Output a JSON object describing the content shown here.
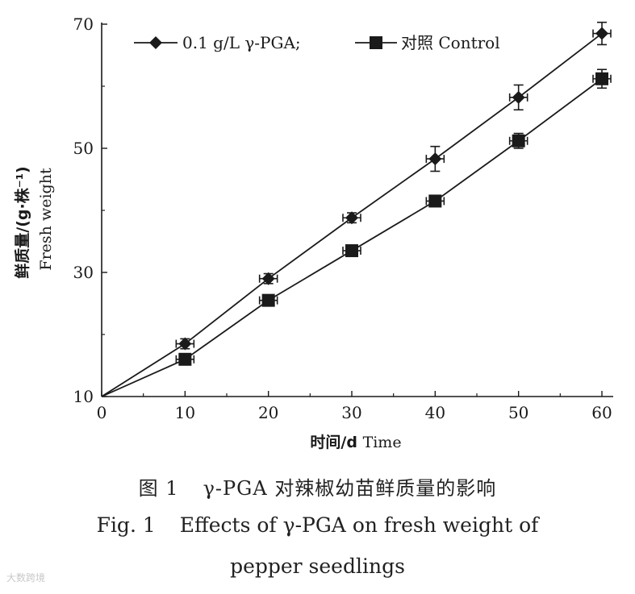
{
  "chart_data": {
    "type": "line",
    "x": [
      0,
      10,
      20,
      30,
      40,
      50,
      60
    ],
    "series": [
      {
        "name": "0.1 g/L γ-PGA;",
        "marker": "diamond",
        "values": [
          10,
          18.5,
          29,
          38.8,
          48.3,
          58.2,
          68.5
        ],
        "errors": [
          0,
          0.8,
          0.8,
          0.8,
          2.0,
          2.0,
          1.8
        ]
      },
      {
        "name": "对照 Control",
        "marker": "square",
        "values": [
          10,
          16,
          25.5,
          33.5,
          41.5,
          51.2,
          61.2
        ],
        "errors": [
          0,
          0.6,
          0.6,
          0.6,
          0.6,
          1.2,
          1.5
        ]
      }
    ],
    "xticks": [
      0,
      10,
      20,
      30,
      40,
      50,
      60
    ],
    "yticks": [
      10,
      30,
      50,
      70
    ],
    "xlim": [
      0,
      60
    ],
    "ylim": [
      10,
      70
    ],
    "xlabel_cn": "时间/d",
    "xlabel_en": "Time",
    "ylabel_cn": "鲜质量/(g·株⁻¹)",
    "ylabel_en": "Fresh weight",
    "legend_position": "top-left"
  },
  "colors": {
    "line": "#1a1a1a",
    "background": "#ffffff"
  },
  "caption": {
    "cn_label": "图 1",
    "cn_text": "γ-PGA 对辣椒幼苗鲜质量的影响",
    "en_label": "Fig. 1",
    "en_text": "Effects of γ-PGA on fresh weight of",
    "en_text2": "pepper seedlings"
  },
  "watermark": "大数跨境"
}
